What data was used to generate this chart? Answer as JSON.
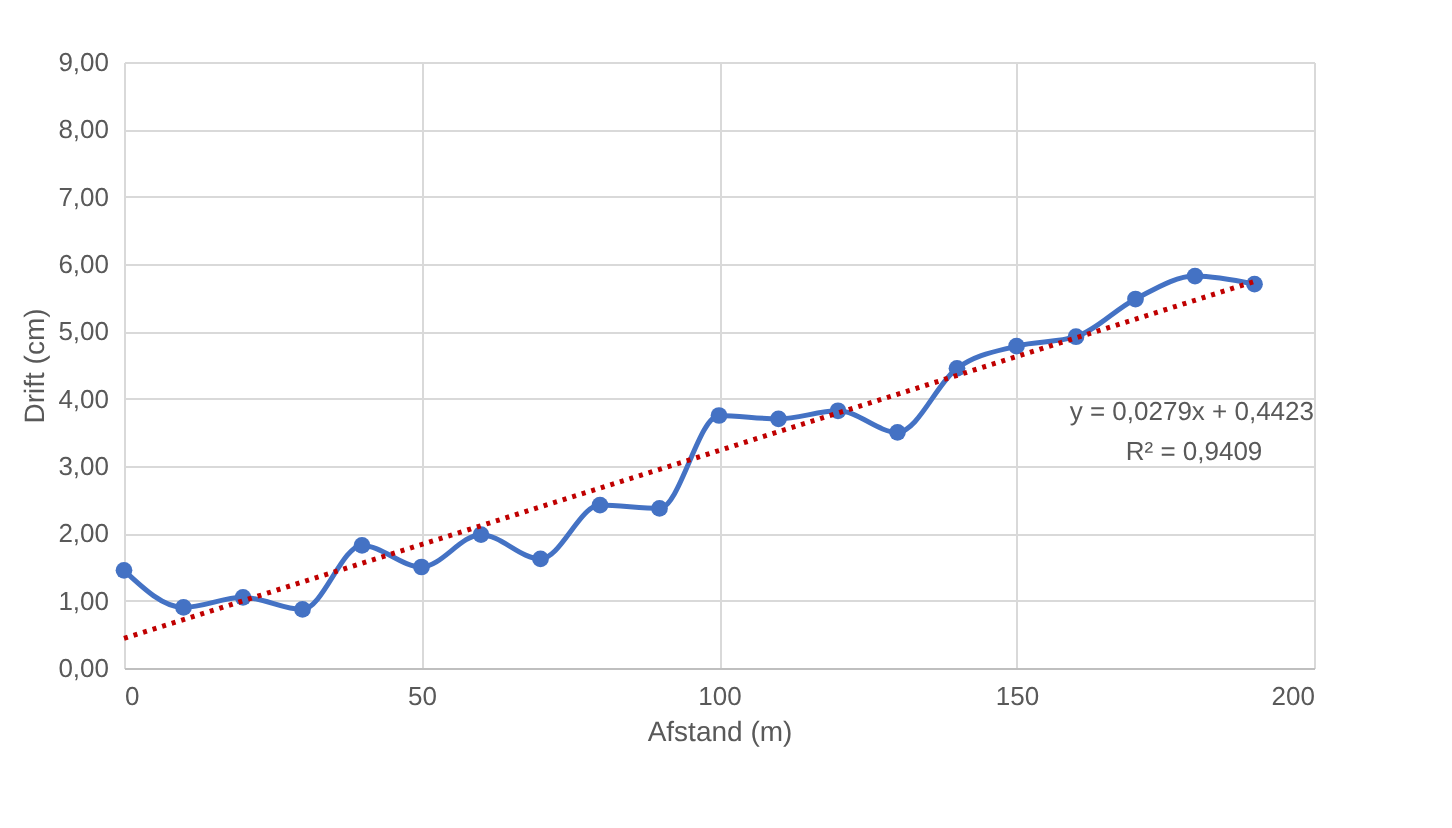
{
  "chart_data": {
    "type": "line",
    "xlabel": "Afstand (m)",
    "ylabel": "Drift (cm)",
    "x": [
      0,
      10,
      20,
      30,
      40,
      50,
      60,
      70,
      80,
      90,
      100,
      110,
      120,
      130,
      140,
      150,
      160,
      170,
      180,
      190
    ],
    "series": [
      {
        "color": "#4472c4",
        "marker": "circle",
        "line_style": "solid",
        "values": [
          1.45,
          0.9,
          1.05,
          0.87,
          1.82,
          1.5,
          1.98,
          1.62,
          2.42,
          2.37,
          3.75,
          3.7,
          3.82,
          3.5,
          4.45,
          4.78,
          4.92,
          5.48,
          5.82,
          5.7
        ]
      },
      {
        "type": "line",
        "color": "#c00000",
        "marker": "none",
        "line_style": "dotted",
        "x": [
          0,
          190
        ],
        "values": [
          0.44,
          5.74
        ]
      }
    ],
    "xlim": [
      0,
      200
    ],
    "xticks": [
      0,
      50,
      100,
      150,
      200
    ],
    "ylim": [
      0,
      9
    ],
    "yticks": [
      {
        "value": 0,
        "label": "0,00"
      },
      {
        "value": 1,
        "label": "1,00"
      },
      {
        "value": 2,
        "label": "2,00"
      },
      {
        "value": 3,
        "label": "3,00"
      },
      {
        "value": 4,
        "label": "4,00"
      },
      {
        "value": 5,
        "label": "5,00"
      },
      {
        "value": 6,
        "label": "6,00"
      },
      {
        "value": 7,
        "label": "7,00"
      },
      {
        "value": 8,
        "label": "8,00"
      },
      {
        "value": 9,
        "label": "9,00"
      }
    ],
    "grid": true,
    "annotations": [
      "y = 0,0279x + 0,4423",
      "R² = 0,9409"
    ]
  }
}
